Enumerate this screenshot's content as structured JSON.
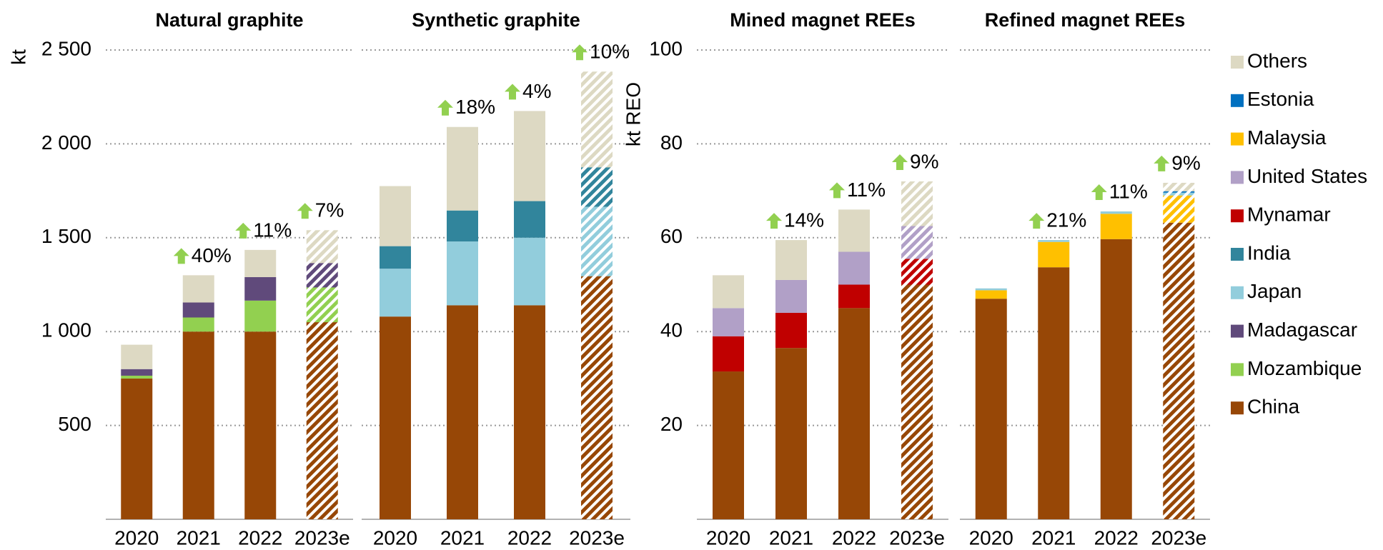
{
  "legend": [
    {
      "name": "Others",
      "color": "#ddd9c3"
    },
    {
      "name": "Estonia",
      "color": "#0070c0"
    },
    {
      "name": "Malaysia",
      "color": "#ffc000"
    },
    {
      "name": "United States",
      "color": "#b1a0c7"
    },
    {
      "name": "Mynamar",
      "color": "#c00000"
    },
    {
      "name": "India",
      "color": "#31859c"
    },
    {
      "name": "Japan",
      "color": "#92cddc"
    },
    {
      "name": "Madagascar",
      "color": "#604a7b"
    },
    {
      "name": "Mozambique",
      "color": "#92d050"
    },
    {
      "name": "China",
      "color": "#974706"
    }
  ],
  "chart_data": [
    {
      "type": "bar",
      "stacked": true,
      "title": "Natural graphite",
      "ylabel": "kt",
      "categories": [
        "2020",
        "2021",
        "2022",
        "2023e"
      ],
      "hatched": [
        false,
        false,
        false,
        true
      ],
      "annotations": [
        null,
        "40%",
        "11%",
        "7%"
      ],
      "ylim": [
        0,
        2500
      ],
      "yticks": [
        500,
        {
          "value": 1000,
          "label": "1 000"
        },
        {
          "value": 1500,
          "label": "1 500"
        },
        {
          "value": 2000,
          "label": "2 000"
        },
        {
          "value": 2500,
          "label": "2 500"
        }
      ],
      "ytick_labels": true,
      "grid": true,
      "series": [
        {
          "name": "China",
          "values": [
            750,
            1000,
            1000,
            1050
          ]
        },
        {
          "name": "Mozambique",
          "values": [
            15,
            75,
            165,
            185
          ]
        },
        {
          "name": "Madagascar",
          "values": [
            35,
            80,
            125,
            130
          ]
        },
        {
          "name": "Others",
          "values": [
            130,
            145,
            145,
            175
          ]
        }
      ]
    },
    {
      "type": "bar",
      "stacked": true,
      "title": "Synthetic graphite",
      "categories": [
        "2020",
        "2021",
        "2022",
        "2023e"
      ],
      "hatched": [
        false,
        false,
        false,
        true
      ],
      "annotations": [
        null,
        "18%",
        "4%",
        "10%"
      ],
      "ylim": [
        0,
        2500
      ],
      "yticks": [
        500,
        1000,
        1500,
        2000,
        2500
      ],
      "ytick_labels": false,
      "grid": true,
      "series": [
        {
          "name": "China",
          "values": [
            1080,
            1140,
            1140,
            1295
          ]
        },
        {
          "name": "Japan",
          "values": [
            255,
            340,
            360,
            370
          ]
        },
        {
          "name": "India",
          "values": [
            120,
            165,
            195,
            210
          ]
        },
        {
          "name": "Others",
          "values": [
            320,
            445,
            480,
            510
          ]
        }
      ]
    },
    {
      "type": "bar",
      "stacked": true,
      "title": "Mined magnet REEs",
      "ylabel": "kt REO",
      "categories": [
        "2020",
        "2021",
        "2022",
        "2023e"
      ],
      "hatched": [
        false,
        false,
        false,
        true
      ],
      "annotations": [
        null,
        "14%",
        "11%",
        "9%"
      ],
      "ylim": [
        0,
        100
      ],
      "yticks": [
        20,
        40,
        60,
        80,
        100
      ],
      "ytick_labels": true,
      "grid": true,
      "series": [
        {
          "name": "China",
          "values": [
            31.5,
            36.5,
            45,
            50
          ]
        },
        {
          "name": "Mynamar",
          "values": [
            7.5,
            7.5,
            5,
            5.5
          ]
        },
        {
          "name": "United States",
          "values": [
            6,
            7,
            7,
            7
          ]
        },
        {
          "name": "Others",
          "values": [
            7,
            8.5,
            9,
            9.5
          ]
        }
      ]
    },
    {
      "type": "bar",
      "stacked": true,
      "title": "Refined magnet REEs",
      "categories": [
        "2020",
        "2021",
        "2022",
        "2023e"
      ],
      "hatched": [
        false,
        false,
        false,
        true
      ],
      "annotations": [
        null,
        "21%",
        "11%",
        "9%"
      ],
      "ylim": [
        0,
        100
      ],
      "yticks": [
        20,
        40,
        60,
        80,
        100
      ],
      "ytick_labels": false,
      "grid": true,
      "series": [
        {
          "name": "China",
          "values": [
            47,
            53.7,
            59.7,
            63.2
          ]
        },
        {
          "name": "Malaysia",
          "values": [
            1.8,
            5.4,
            5.4,
            5.8
          ]
        },
        {
          "name": "Japan",
          "values": [
            0.4,
            0.4,
            0.5,
            0.6
          ]
        },
        {
          "name": "Estonia",
          "values": [
            0,
            0,
            0,
            0.3
          ]
        },
        {
          "name": "Others",
          "values": [
            0,
            0,
            0,
            1.8
          ]
        }
      ]
    }
  ]
}
